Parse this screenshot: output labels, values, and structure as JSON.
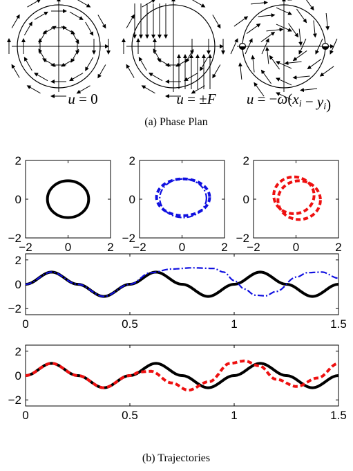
{
  "phase_plan": {
    "caption": "(a) Phase Plan",
    "panels": [
      {
        "label_parts": [
          {
            "t": "u",
            "i": true
          },
          {
            "t": " = 0",
            "i": false
          }
        ],
        "field": "rotation"
      },
      {
        "label_parts": [
          {
            "t": "u",
            "i": true
          },
          {
            "t": " = ±",
            "i": false
          },
          {
            "t": "F",
            "i": true
          }
        ],
        "field": "bangbang"
      },
      {
        "label_parts": [
          {
            "t": "u",
            "i": true
          },
          {
            "t": " = −",
            "i": false
          },
          {
            "t": "ω",
            "i": true
          },
          {
            "t": "(",
            "i": false
          },
          {
            "t": "x",
            "i": true
          },
          {
            "t": "i",
            "i": true,
            "sub": true
          },
          {
            "t": " − ",
            "i": false
          },
          {
            "t": "y",
            "i": true
          },
          {
            "t": "i",
            "i": true,
            "sub": true
          },
          {
            "t": ")",
            "i": false
          }
        ],
        "field": "damped"
      }
    ]
  },
  "trajectories_caption": "(b) Trajectories",
  "colors": {
    "black": "#000000",
    "blue": "#1010e0",
    "red": "#ee1010"
  },
  "chart_data": [
    {
      "type": "line",
      "title": "",
      "xlabel": "",
      "ylabel": "",
      "xlim": [
        -2,
        2
      ],
      "ylim": [
        -2,
        2
      ],
      "xticks": [
        "−2",
        "0",
        "2"
      ],
      "yticks": [
        "2",
        "0",
        "−2"
      ],
      "series": [
        {
          "kind": "ellipse",
          "cx": 0,
          "cy": 0,
          "rx": 0.97,
          "ry": 0.95,
          "color": "black",
          "style": "solid"
        }
      ]
    },
    {
      "type": "line",
      "title": "",
      "xlabel": "",
      "ylabel": "",
      "xlim": [
        -2,
        2
      ],
      "ylim": [
        -2,
        2
      ],
      "xticks": [
        "−2",
        "0",
        "2"
      ],
      "yticks": [
        "2",
        "0",
        "−2"
      ],
      "series": [
        {
          "kind": "ellipse",
          "cx": 0.05,
          "cy": 0.1,
          "rx": 1.25,
          "ry": 0.95,
          "color": "blue",
          "style": "dashed"
        },
        {
          "kind": "ellipse",
          "cx": 0.05,
          "cy": 0.05,
          "rx": 1.1,
          "ry": 1.0,
          "color": "blue",
          "style": "dashdot"
        }
      ]
    },
    {
      "type": "line",
      "title": "",
      "xlabel": "",
      "ylabel": "",
      "xlim": [
        -2,
        2
      ],
      "ylim": [
        -2,
        2
      ],
      "xticks": [
        "−2",
        "0",
        "2"
      ],
      "yticks": [
        "2",
        "0",
        "−2"
      ],
      "series": [
        {
          "kind": "ellipse",
          "cx": -0.1,
          "cy": 0.2,
          "rx": 0.95,
          "ry": 0.95,
          "color": "red",
          "style": "dashed"
        },
        {
          "kind": "ellipse",
          "cx": 0.15,
          "cy": -0.05,
          "rx": 1.0,
          "ry": 1.0,
          "color": "red",
          "style": "dashed"
        }
      ]
    },
    {
      "type": "line",
      "title": "",
      "xlabel": "",
      "ylabel": "",
      "xlim": [
        0,
        1.5
      ],
      "ylim": [
        -2.5,
        2.5
      ],
      "xticks": [
        "0",
        "0.5",
        "1",
        "1.5"
      ],
      "yticks": [
        "2",
        "0",
        "−2"
      ],
      "series": [
        {
          "color": "black",
          "style": "solid",
          "x": [
            0,
            0.125,
            0.25,
            0.375,
            0.5,
            0.625,
            0.75,
            0.875,
            1.0,
            1.125,
            1.25,
            1.375,
            1.5
          ],
          "y": [
            0,
            1,
            0,
            -1,
            0,
            1,
            0,
            -1,
            0,
            1,
            0,
            -1,
            0
          ]
        },
        {
          "color": "blue",
          "style": "dashdot",
          "x": [
            0,
            0.125,
            0.25,
            0.375,
            0.5,
            0.6,
            0.7,
            0.8,
            0.9,
            0.95,
            1.0,
            1.05,
            1.1,
            1.15,
            1.2,
            1.3,
            1.35,
            1.42,
            1.5
          ],
          "y": [
            0,
            1,
            0,
            -1,
            0,
            0.95,
            1.25,
            1.35,
            1.3,
            1.0,
            0.3,
            -0.4,
            -0.9,
            -0.95,
            -0.6,
            0.6,
            0.95,
            1.0,
            0.5
          ]
        }
      ]
    },
    {
      "type": "line",
      "title": "",
      "xlabel": "",
      "ylabel": "",
      "xlim": [
        0,
        1.5
      ],
      "ylim": [
        -2.5,
        2.5
      ],
      "xticks": [
        "0",
        "0.5",
        "1",
        "1.5"
      ],
      "yticks": [
        "2",
        "0",
        "−2"
      ],
      "series": [
        {
          "color": "black",
          "style": "solid",
          "x": [
            0,
            0.125,
            0.25,
            0.375,
            0.5,
            0.625,
            0.75,
            0.875,
            1.0,
            1.125,
            1.25,
            1.375,
            1.5
          ],
          "y": [
            0,
            1,
            0,
            -1,
            0,
            1,
            0,
            -1,
            0,
            1,
            0,
            -1,
            0
          ]
        },
        {
          "color": "red",
          "style": "dashed",
          "x": [
            0,
            0.125,
            0.25,
            0.375,
            0.5,
            0.55,
            0.6,
            0.7,
            0.78,
            0.88,
            0.98,
            1.05,
            1.12,
            1.2,
            1.3,
            1.4,
            1.5
          ],
          "y": [
            0,
            1,
            0,
            -1,
            0,
            0.3,
            0.35,
            -0.6,
            -1.2,
            -0.5,
            1.0,
            1.2,
            0.8,
            -0.3,
            -0.9,
            -0.2,
            1.0
          ]
        }
      ]
    }
  ]
}
